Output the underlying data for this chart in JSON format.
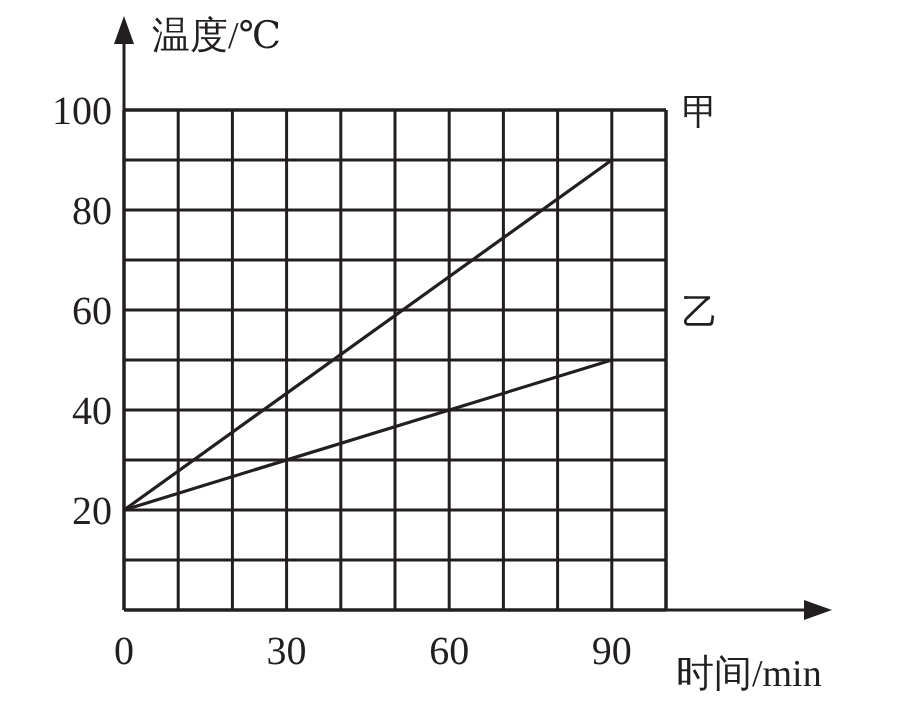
{
  "chart_data": {
    "type": "line",
    "xlabel": "时间/min",
    "ylabel": "温度/℃",
    "x": [
      0,
      90
    ],
    "series": [
      {
        "name": "甲",
        "color": "#231f20",
        "values": [
          20,
          90
        ]
      },
      {
        "name": "乙",
        "color": "#231f20",
        "values": [
          20,
          50
        ]
      }
    ],
    "xlim": [
      0,
      100
    ],
    "ylim": [
      0,
      100
    ],
    "xticks": [
      0,
      {
        "value": 10,
        "label": null
      },
      {
        "value": 20,
        "label": null
      },
      30,
      {
        "value": 40,
        "label": null
      },
      {
        "value": 50,
        "label": null
      },
      60,
      {
        "value": 70,
        "label": null
      },
      {
        "value": 80,
        "label": null
      },
      90,
      {
        "value": 100,
        "label": null
      }
    ],
    "yticks": [
      {
        "value": 0,
        "label": null
      },
      {
        "value": 10,
        "label": null
      },
      20,
      {
        "value": 30,
        "label": null
      },
      40,
      {
        "value": 50,
        "label": null
      },
      60,
      {
        "value": 70,
        "label": null
      },
      80,
      {
        "value": 90,
        "label": null
      },
      100
    ],
    "grid": true,
    "marker": "none",
    "line_style": "solid"
  }
}
